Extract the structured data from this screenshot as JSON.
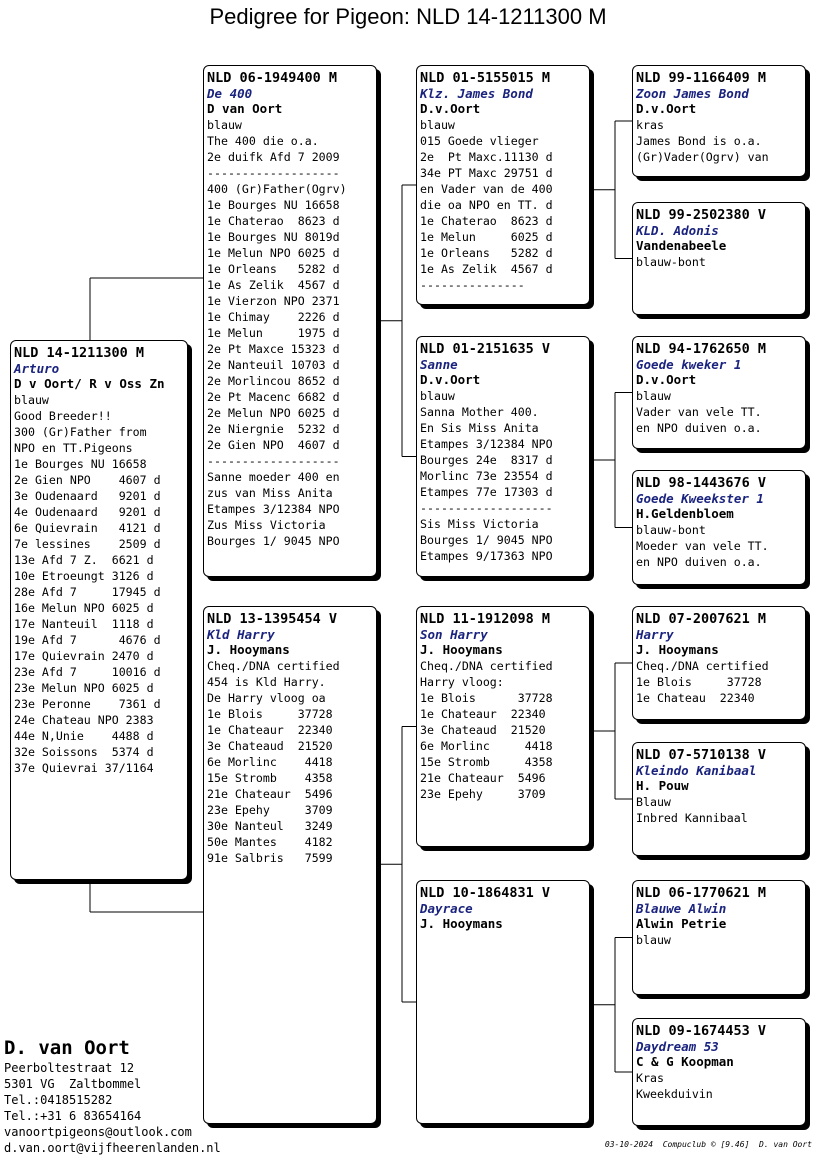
{
  "title": "Pedigree for Pigeon: NLD 14-1211300 M",
  "pigeons": [
    {
      "ring": "NLD 14-1211300 M",
      "name": "Arturo",
      "owner": "D v Oort/ R v Oss Zn",
      "lines": [
        "blauw",
        "Good Breeder!!",
        "300 (Gr)Father from",
        "NPO en TT.Pigeons",
        "1e Bourges NU 16658",
        "2e Gien NPO    4607 d",
        "3e Oudenaard   9201 d",
        "4e Oudenaard   9201 d",
        "6e Quievrain   4121 d",
        "7e lessines    2509 d",
        "13e Afd 7 Z.  6621 d",
        "10e Etroeungt 3126 d",
        "28e Afd 7     17945 d",
        "16e Melun NPO 6025 d",
        "17e Nanteuil  1118 d",
        "19e Afd 7      4676 d",
        "17e Quievrain 2470 d",
        "23e Afd 7     10016 d",
        "23e Melun NPO 6025 d",
        "23e Peronne    7361 d",
        "24e Chateau NPO 2383",
        "44e N,Unie    4488 d",
        "32e Soissons  5374 d",
        "37e Quievrai 37/1164"
      ]
    },
    {
      "ring": "NLD 06-1949400 M",
      "name": "De 400",
      "owner": "D van Oort",
      "lines": [
        "blauw",
        "The 400 die o.a.",
        "2e duifk Afd 7 2009",
        "-------------------",
        "400 (Gr)Father(Ogrv)",
        "1e Bourges NU 16658",
        "1e Chaterao  8623 d",
        "1e Bourges NU 8019d",
        "1e Melun NPO 6025 d",
        "1e Orleans   5282 d",
        "1e As Zelik  4567 d",
        "1e Vierzon NPO 2371",
        "1e Chimay    2226 d",
        "1e Melun     1975 d",
        "2e Pt Maxce 15323 d",
        "2e Nanteuil 10703 d",
        "2e Morlincou 8652 d",
        "2e Pt Macenc 6682 d",
        "2e Melun NPO 6025 d",
        "2e Niergnie  5232 d",
        "2e Gien NPO  4607 d",
        "-------------------",
        "Sanne moeder 400 en",
        "zus van Miss Anita",
        "Etampes 3/12384 NPO",
        "Zus Miss Victoria",
        "Bourges 1/ 9045 NPO"
      ]
    },
    {
      "ring": "NLD 13-1395454 V",
      "name": "Kld Harry",
      "owner": "J. Hooymans",
      "lines": [
        "Cheq./DNA certified",
        "454 is Kld Harry.",
        "De Harry vloog oa",
        "1e Blois     37728",
        "1e Chateaur  22340",
        "3e Chateaud  21520",
        "6e Morlinc    4418",
        "15e Stromb    4358",
        "21e Chateaur  5496",
        "23e Epehy     3709",
        "30e Nanteul   3249",
        "50e Mantes    4182",
        "91e Salbris   7599"
      ]
    },
    {
      "ring": "NLD 01-5155015 M",
      "name": "Klz. James Bond",
      "owner": "D.v.Oort",
      "lines": [
        "blauw",
        "015 Goede vlieger",
        "2e  Pt Maxc.11130 d",
        "34e PT Maxc 29751 d",
        "en Vader van de 400",
        "die oa NPO en TT. d",
        "1e Chaterao  8623 d",
        "1e Melun     6025 d",
        "1e Orleans   5282 d",
        "1e As Zelik  4567 d",
        "---------------"
      ]
    },
    {
      "ring": "NLD 01-2151635 V",
      "name": "Sanne",
      "owner": "D.v.Oort",
      "lines": [
        "blauw",
        "Sanna Mother 400.",
        "En Sis Miss Anita",
        "Etampes 3/12384 NPO",
        "Bourges 24e  8317 d",
        "Morlinc 73e 23554 d",
        "Etampes 77e 17303 d",
        "-------------------",
        "Sis Miss Victoria",
        "Bourges 1/ 9045 NPO",
        "Etampes 9/17363 NPO"
      ]
    },
    {
      "ring": "NLD 11-1912098 M",
      "name": "Son Harry",
      "owner": "J. Hooymans",
      "lines": [
        "Cheq./DNA certified",
        "Harry vloog:",
        "1e Blois      37728",
        "1e Chateaur  22340",
        "3e Chateaud  21520",
        "6e Morlinc     4418",
        "15e Stromb     4358",
        "21e Chateaur  5496",
        "23e Epehy     3709"
      ]
    },
    {
      "ring": "NLD 10-1864831 V",
      "name": "Dayrace",
      "owner": "J. Hooymans",
      "lines": []
    },
    {
      "ring": "NLD 99-1166409 M",
      "name": "Zoon James Bond",
      "owner": "D.v.Oort",
      "lines": [
        "kras",
        "James Bond is o.a.",
        "(Gr)Vader(Ogrv) van"
      ]
    },
    {
      "ring": "NLD 99-2502380 V",
      "name": "KLD. Adonis",
      "owner": "Vandenabeele",
      "lines": [
        "blauw-bont"
      ]
    },
    {
      "ring": "NLD 94-1762650 M",
      "name": "Goede kweker 1",
      "owner": "D.v.Oort",
      "lines": [
        "blauw",
        "Vader van vele TT.",
        "en NPO duiven o.a."
      ]
    },
    {
      "ring": "NLD 98-1443676 V",
      "name": "Goede Kweekster 1",
      "owner": "H.Geldenbloem",
      "lines": [
        "blauw-bont",
        "Moeder van vele TT.",
        "en NPO duiven o.a."
      ]
    },
    {
      "ring": "NLD 07-2007621 M",
      "name": "Harry",
      "owner": "J. Hooymans",
      "lines": [
        "Cheq./DNA certified",
        "1e Blois     37728",
        "1e Chateau  22340"
      ]
    },
    {
      "ring": "NLD 07-5710138 V",
      "name": "Kleindo Kanibaal",
      "owner": "H. Pouw",
      "lines": [
        "Blauw",
        "Inbred Kannibaal"
      ]
    },
    {
      "ring": "NLD 06-1770621 M",
      "name": "Blauwe Alwin",
      "owner": "Alwin Petrie",
      "lines": [
        "blauw"
      ]
    },
    {
      "ring": "NLD 09-1674453 V",
      "name": "Daydream 53",
      "owner": "C & G Koopman",
      "lines": [
        "Kras",
        "Kweekduivin"
      ]
    }
  ],
  "breeder": {
    "name": "D. van Oort",
    "lines": [
      "Peerboltestraat 12",
      "5301 VG  Zaltbommel",
      "Tel.:0418515282",
      "Tel.:+31 6 83654164",
      "vanoortpigeons@outlook.com",
      "d.van.oort@vijfheerenlanden.nl"
    ]
  },
  "footer": "03-10-2024  Compuclub © [9.46]  D. van Oort"
}
